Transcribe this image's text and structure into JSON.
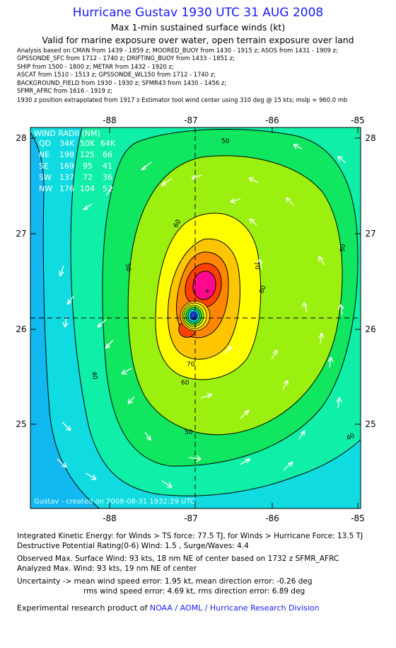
{
  "header": {
    "title": "Hurricane Gustav 1930 UTC 31 AUG 2008",
    "subtitle": "Max 1-min sustained surface winds (kt)",
    "subtitle2": "Valid for marine exposure over water, open terrain exposure over land"
  },
  "sources": [
    "Analysis based on  CMAN from 1439 - 1859 z;  MOORED_BUOY from 1430 - 1915 z;  ASOS from 1431 - 1909 z;",
    "GPSSONDE_SFC from 1712 - 1740 z;  DRIFTING_BUOY from 1433 - 1851 z;",
    "SHIP from 1500 - 1800 z;   METAR from 1432 - 1920 z;",
    "ASCAT from 1510 - 1513 z;  GPSSONDE_WL150 from 1712 - 1740 z;",
    "BACKGROUND_FIELD from 1930 - 1930 z;  SFMR43 from 1430 - 1456 z;",
    "SFMR_AFRC from 1616 - 1919 z;",
    "    1930 z position extrapolated from 1917 z Estimator tool wind center using 310 deg @ 15 kts; mslp = 960.0 mb"
  ],
  "map": {
    "lon_ticks": [
      "-88",
      "-87",
      "-86",
      "-85"
    ],
    "lat_ticks": [
      "28",
      "27",
      "26",
      "25"
    ],
    "center": {
      "lon": -87.0,
      "lat": 26.1
    },
    "contour_labels": [
      "50",
      "60",
      "70",
      "50",
      "60",
      "50",
      "40",
      "60",
      "70",
      "50",
      "40"
    ],
    "wind_radii": {
      "title": "WIND RADII (NM)",
      "header": [
        "QD",
        "34K",
        "50K",
        "64K"
      ],
      "rows": [
        [
          "NE",
          "198",
          "125",
          "66"
        ],
        [
          "SE",
          "169",
          "95",
          "41"
        ],
        [
          "SW",
          "137",
          "72",
          "36"
        ],
        [
          "NW",
          "176",
          "104",
          "52"
        ]
      ]
    },
    "credit": "Gustav - created on 2008-08-31  1932:29 UTC",
    "colors": {
      "lt30": "#12b8f0",
      "c30": "#10dbe0",
      "c40": "#0fefa8",
      "c50": "#10e660",
      "c60": "#9cf010",
      "c70": "#ffff00",
      "c80": "#ffc600",
      "c90": "#ff8600",
      "c100": "#ff4000",
      "c110": "#ff0a8c",
      "eye": "#1c3cd8"
    }
  },
  "footer": {
    "ike": "Integrated Kinetic Energy:  for Winds > TS force: 77.5 TJ,  for Winds > Hurricane Force: 13.5 TJ",
    "dpr": "Destructive Potential Rating(0-6)   Wind: 1.5 , Surge/Waves: 4.4",
    "obs": "Observed Max. Surface Wind: 93 kts, 18 nm NE of center based on 1732 z SFMR_AFRC",
    "analyzed": "Analyzed Max. Wind: 93 kts, 19 nm NE of center",
    "unc1": "Uncertainty -> mean wind speed error: 1.95 kt,   mean direction error:  -0.26 deg",
    "unc2": "rms wind speed error: 4.69 kt,   rms direction error: 6.89 deg",
    "product_prefix": "Experimental research product of ",
    "product_org": "NOAA / AOML / Hurricane Research Division"
  }
}
